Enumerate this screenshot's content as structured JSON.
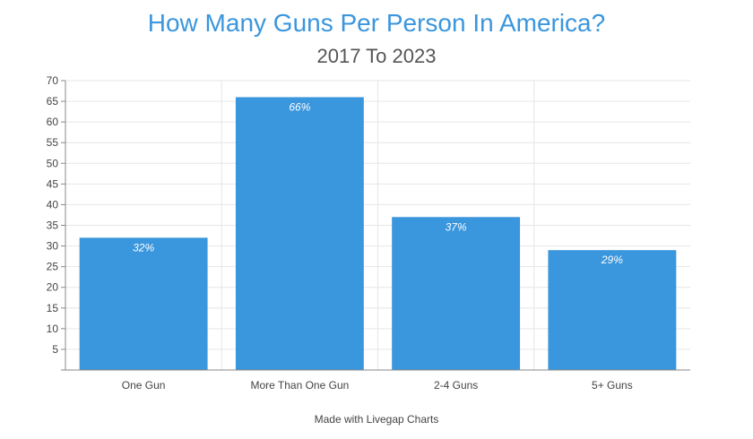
{
  "chart_data": {
    "type": "bar",
    "title": "How Many Guns Per Person In America?",
    "subtitle": "2017 To 2023",
    "categories": [
      "One Gun",
      "More Than One Gun",
      "2-4 Guns",
      "5+ Guns"
    ],
    "values": [
      32,
      66,
      37,
      29
    ],
    "data_labels": [
      "32%",
      "66%",
      "37%",
      "29%"
    ],
    "ylim": [
      0,
      70
    ],
    "yticks": [
      5,
      10,
      15,
      20,
      25,
      30,
      35,
      40,
      45,
      50,
      55,
      60,
      65,
      70
    ],
    "xlabel": "",
    "ylabel": "",
    "grid": true,
    "bar_color": "#3a96dd"
  },
  "footer": "Made with Livegap Charts"
}
